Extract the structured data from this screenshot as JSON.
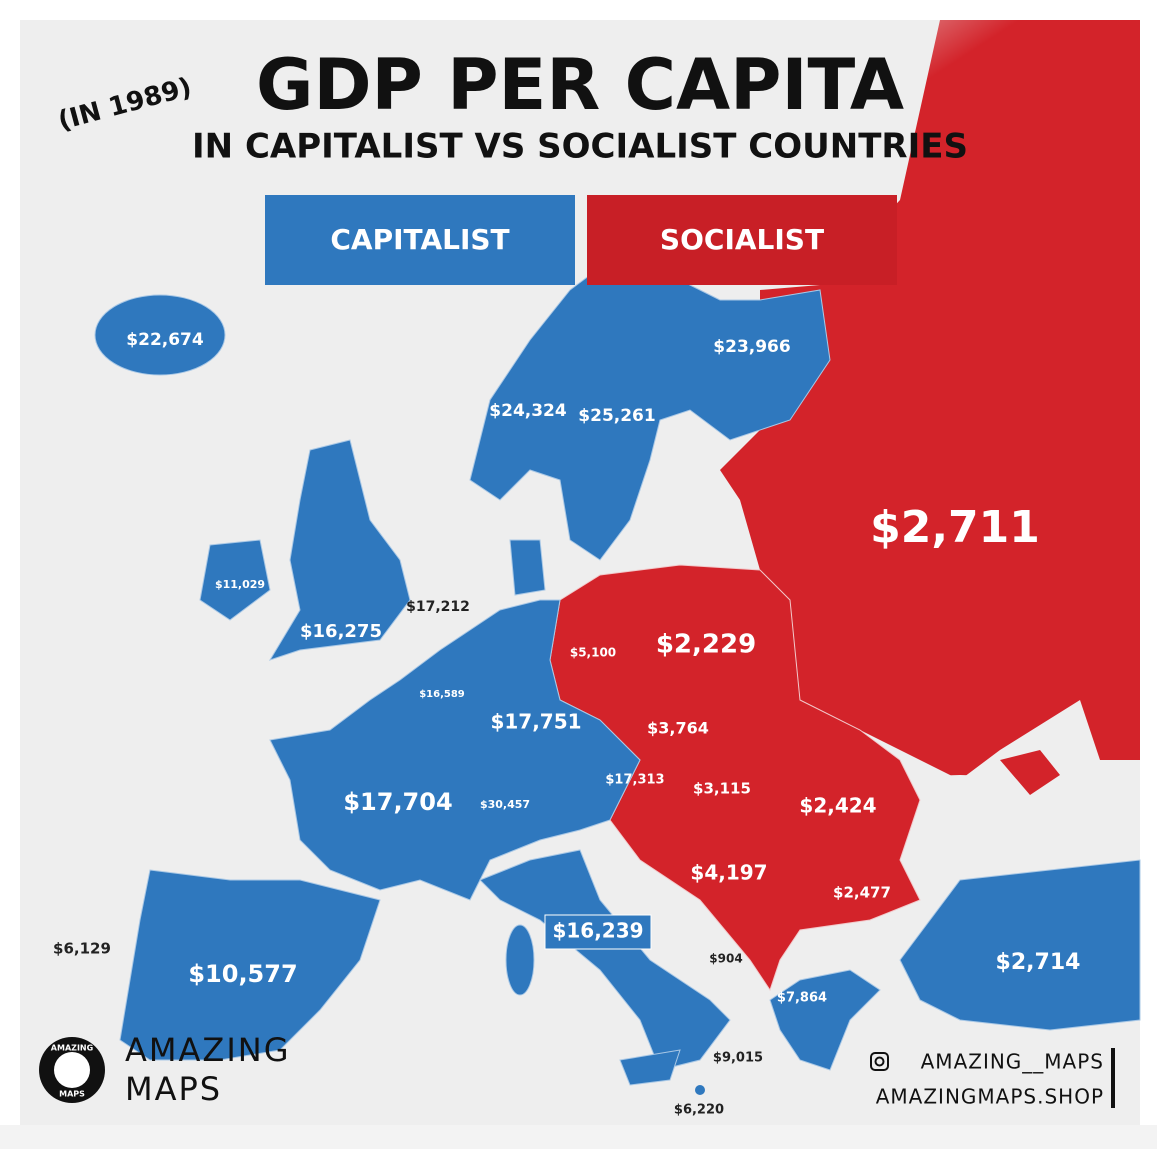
{
  "header": {
    "note": "(IN 1989)",
    "title": "GDP PER CAPITA",
    "subtitle": "IN CAPITALIST VS SOCIALIST COUNTRIES"
  },
  "legend": {
    "capitalist": "CAPITALIST",
    "socialist": "SOCIALIST"
  },
  "regions": [
    "$22,674",
    "$23,966",
    "$24,324",
    "$25,261",
    "$2,711",
    "$11,029",
    "$17,212",
    "$16,275",
    "$5,100",
    "$2,229",
    "$16,589",
    "$17,751",
    "$3,764",
    "$17,313",
    "$3,115",
    "$2,424",
    "$17,704",
    "$30,457",
    "$4,197",
    "$2,477",
    "$16,239",
    "$6,129",
    "$10,577",
    "$904",
    "$2,714",
    "$7,864",
    "$9,015",
    "$6,220"
  ],
  "logo": {
    "ring_top": "AMAZING",
    "ring_bottom": "MAPS",
    "line1": "AMAZING",
    "line2": "MAPS"
  },
  "credits": {
    "instagram": "AMAZING__MAPS",
    "shop": "AMAZINGMAPS.SHOP"
  }
}
